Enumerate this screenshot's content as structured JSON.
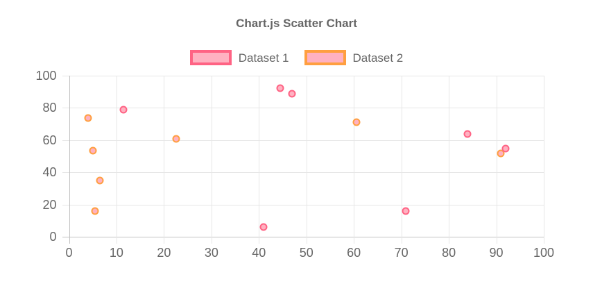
{
  "title": "Chart.js Scatter Chart",
  "colors": {
    "text": "#666666",
    "grid": "#E6E6E6",
    "zero_line": "#C2C2C2",
    "background": "#FFFFFF",
    "pink": "#FF6384",
    "pink_fill": "#FFB1C1",
    "orange": "#FF9F40"
  },
  "legend": [
    {
      "label": "Dataset 1",
      "border": "#FF6384",
      "fill": "#FFB1C1"
    },
    {
      "label": "Dataset 2",
      "border": "#FF9F40",
      "fill": "#FFB1C1"
    }
  ],
  "chart_data": {
    "type": "scatter",
    "title": "Chart.js Scatter Chart",
    "xlabel": "",
    "ylabel": "",
    "xlim": [
      0,
      100
    ],
    "ylim": [
      0,
      100
    ],
    "x_ticks": [
      0,
      10,
      20,
      30,
      40,
      50,
      60,
      70,
      80,
      90,
      100
    ],
    "y_ticks": [
      0,
      20,
      40,
      60,
      80,
      100
    ],
    "grid": true,
    "legend_position": "top",
    "series": [
      {
        "name": "Dataset 1",
        "border_color": "#FF6384",
        "background_color": "#FFB1C1",
        "points": [
          {
            "x": 11.5,
            "y": 78.5
          },
          {
            "x": 41,
            "y": 6
          },
          {
            "x": 44.5,
            "y": 92
          },
          {
            "x": 47,
            "y": 88.5
          },
          {
            "x": 71,
            "y": 16
          },
          {
            "x": 84,
            "y": 63.5
          },
          {
            "x": 92,
            "y": 54.5
          }
        ]
      },
      {
        "name": "Dataset 2",
        "border_color": "#FF9F40",
        "background_color": "#FFB1C1",
        "points": [
          {
            "x": 4,
            "y": 73.5
          },
          {
            "x": 5,
            "y": 53.5
          },
          {
            "x": 5.5,
            "y": 16
          },
          {
            "x": 6.5,
            "y": 35
          },
          {
            "x": 22.5,
            "y": 60.5
          },
          {
            "x": 60.5,
            "y": 71
          },
          {
            "x": 91,
            "y": 51.5
          }
        ]
      }
    ]
  }
}
